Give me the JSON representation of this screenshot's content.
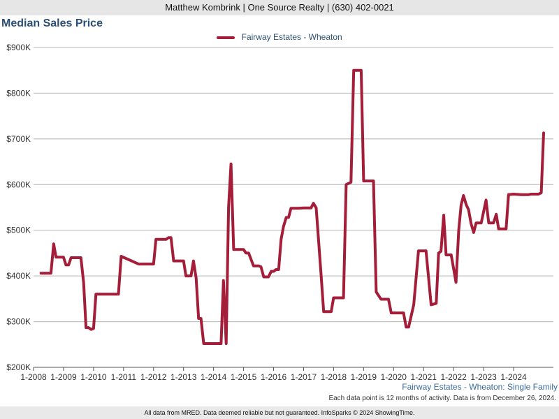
{
  "header": {
    "text": "Matthew Kombrink | One Source Realty | (630) 402-0021"
  },
  "chart_data": {
    "type": "line",
    "title": "Median Sales Price",
    "xlabel": "",
    "ylabel": "",
    "ylim": [
      200000,
      900000
    ],
    "yticks": [
      200000,
      300000,
      400000,
      500000,
      600000,
      700000,
      800000,
      900000
    ],
    "ytick_labels": [
      "$200K",
      "$300K",
      "$400K",
      "$500K",
      "$600K",
      "$700K",
      "$800K",
      "$900K"
    ],
    "xlim": [
      2008.0,
      2025.0
    ],
    "xticks": [
      2008,
      2009,
      2010,
      2011,
      2012,
      2013,
      2014,
      2015,
      2016,
      2017,
      2018,
      2019,
      2020,
      2021,
      2022,
      2023,
      2024
    ],
    "xtick_labels": [
      "1-2008",
      "1-2009",
      "1-2010",
      "1-2011",
      "1-2012",
      "1-2013",
      "1-2014",
      "1-2015",
      "1-2016",
      "1-2017",
      "1-2018",
      "1-2019",
      "1-2020",
      "1-2021",
      "1-2022",
      "1-2023",
      "1-2024"
    ],
    "grid": true,
    "legend": "top-center",
    "series": [
      {
        "name": "Fairway Estates - Wheaton",
        "color": "#a41e3a",
        "points": [
          [
            2008.25,
            406000
          ],
          [
            2008.58,
            406000
          ],
          [
            2008.67,
            470000
          ],
          [
            2008.75,
            441000
          ],
          [
            2009.0,
            441000
          ],
          [
            2009.08,
            424000
          ],
          [
            2009.17,
            424000
          ],
          [
            2009.25,
            440000
          ],
          [
            2009.58,
            440000
          ],
          [
            2009.67,
            385000
          ],
          [
            2009.75,
            287000
          ],
          [
            2009.83,
            287000
          ],
          [
            2009.92,
            283000
          ],
          [
            2010.0,
            285000
          ],
          [
            2010.08,
            360000
          ],
          [
            2010.33,
            360000
          ],
          [
            2010.58,
            360000
          ],
          [
            2010.83,
            360000
          ],
          [
            2010.92,
            443000
          ],
          [
            2011.5,
            426000
          ],
          [
            2011.75,
            426000
          ],
          [
            2012.0,
            426000
          ],
          [
            2012.08,
            480000
          ],
          [
            2012.42,
            480000
          ],
          [
            2012.5,
            484000
          ],
          [
            2012.58,
            484000
          ],
          [
            2012.67,
            433000
          ],
          [
            2012.83,
            433000
          ],
          [
            2013.0,
            433000
          ],
          [
            2013.08,
            400000
          ],
          [
            2013.25,
            400000
          ],
          [
            2013.33,
            433000
          ],
          [
            2013.42,
            395000
          ],
          [
            2013.5,
            307000
          ],
          [
            2013.58,
            307000
          ],
          [
            2013.67,
            252000
          ],
          [
            2013.83,
            252000
          ],
          [
            2014.0,
            252000
          ],
          [
            2014.25,
            252000
          ],
          [
            2014.33,
            390000
          ],
          [
            2014.42,
            252000
          ],
          [
            2014.5,
            550000
          ],
          [
            2014.58,
            645000
          ],
          [
            2014.67,
            458000
          ],
          [
            2014.83,
            458000
          ],
          [
            2015.0,
            458000
          ],
          [
            2015.08,
            450000
          ],
          [
            2015.17,
            450000
          ],
          [
            2015.33,
            422000
          ],
          [
            2015.5,
            422000
          ],
          [
            2015.58,
            420000
          ],
          [
            2015.67,
            398000
          ],
          [
            2015.83,
            398000
          ],
          [
            2015.92,
            410000
          ],
          [
            2016.0,
            410000
          ],
          [
            2016.08,
            414000
          ],
          [
            2016.17,
            414000
          ],
          [
            2016.25,
            480000
          ],
          [
            2016.33,
            508000
          ],
          [
            2016.42,
            528000
          ],
          [
            2016.5,
            528000
          ],
          [
            2016.58,
            548000
          ],
          [
            2016.83,
            548000
          ],
          [
            2017.0,
            549000
          ],
          [
            2017.25,
            549000
          ],
          [
            2017.33,
            559000
          ],
          [
            2017.42,
            549000
          ],
          [
            2017.58,
            405000
          ],
          [
            2017.67,
            322000
          ],
          [
            2017.92,
            322000
          ],
          [
            2018.0,
            352000
          ],
          [
            2018.25,
            352000
          ],
          [
            2018.33,
            352000
          ],
          [
            2018.42,
            600000
          ],
          [
            2018.58,
            605000
          ],
          [
            2018.67,
            850000
          ],
          [
            2018.92,
            850000
          ],
          [
            2019.0,
            608000
          ],
          [
            2019.33,
            608000
          ],
          [
            2019.42,
            365000
          ],
          [
            2019.58,
            349000
          ],
          [
            2019.83,
            349000
          ],
          [
            2019.92,
            319000
          ],
          [
            2020.17,
            319000
          ],
          [
            2020.33,
            319000
          ],
          [
            2020.42,
            288000
          ],
          [
            2020.5,
            288000
          ],
          [
            2020.67,
            337000
          ],
          [
            2020.83,
            455000
          ],
          [
            2021.08,
            455000
          ],
          [
            2021.25,
            337000
          ],
          [
            2021.42,
            340000
          ],
          [
            2021.5,
            450000
          ],
          [
            2021.58,
            454000
          ],
          [
            2021.67,
            533000
          ],
          [
            2021.75,
            446000
          ],
          [
            2021.92,
            446000
          ],
          [
            2022.08,
            386000
          ],
          [
            2022.17,
            500000
          ],
          [
            2022.25,
            555000
          ],
          [
            2022.33,
            576000
          ],
          [
            2022.42,
            556000
          ],
          [
            2022.5,
            545000
          ],
          [
            2022.58,
            515000
          ],
          [
            2022.67,
            495000
          ],
          [
            2022.75,
            516000
          ],
          [
            2022.92,
            516000
          ],
          [
            2023.08,
            566000
          ],
          [
            2023.17,
            516000
          ],
          [
            2023.33,
            516000
          ],
          [
            2023.42,
            535000
          ],
          [
            2023.5,
            503000
          ],
          [
            2023.75,
            503000
          ],
          [
            2023.83,
            578000
          ],
          [
            2024.0,
            579000
          ],
          [
            2024.25,
            578000
          ],
          [
            2024.5,
            578000
          ],
          [
            2024.58,
            579000
          ],
          [
            2024.83,
            579000
          ],
          [
            2024.92,
            582000
          ],
          [
            2025.0,
            713000
          ]
        ]
      }
    ]
  },
  "footer": {
    "caption": "Fairway Estates - Wheaton: Single Family",
    "note": "Each data point is 12 months of activity. Data is from December 26, 2024.",
    "disclaimer": "All data from MRED. Data deemed reliable but not guaranteed. InfoSparks © 2024 ShowingTime."
  }
}
